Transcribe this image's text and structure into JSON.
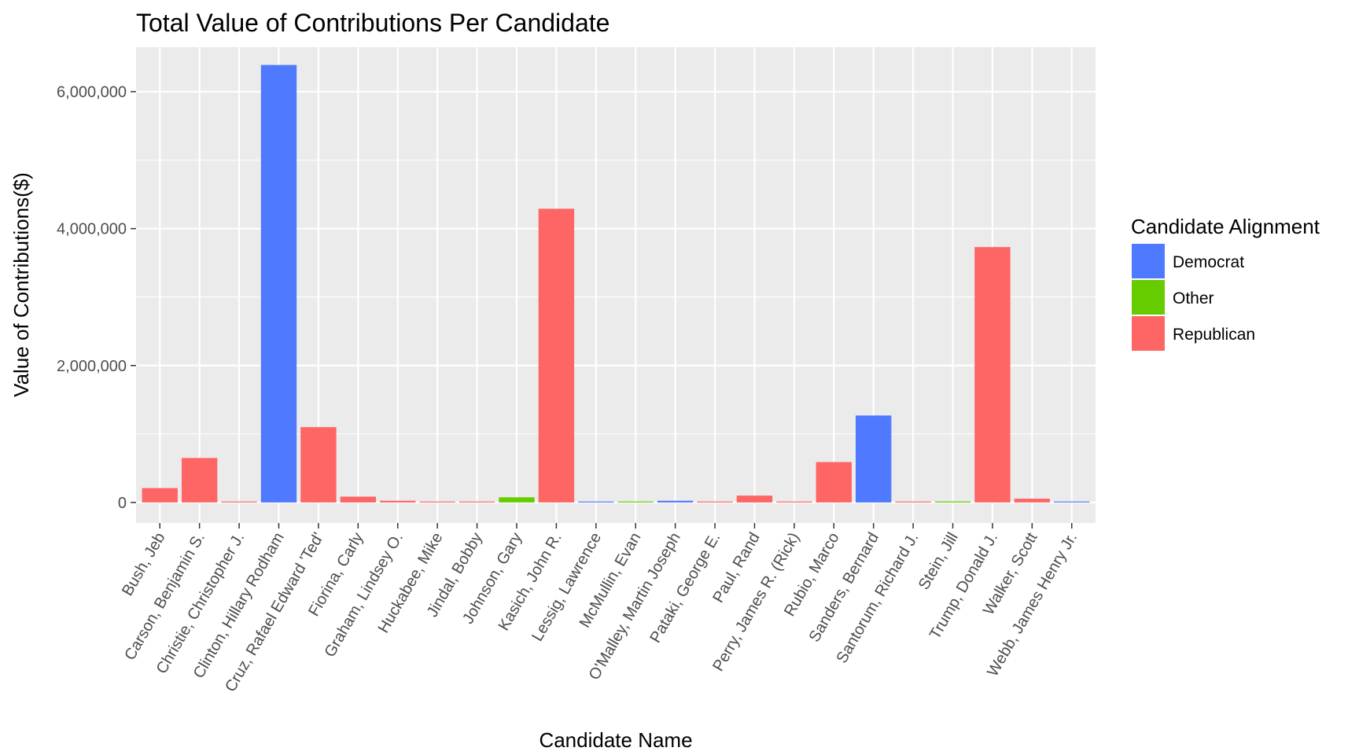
{
  "chart_data": {
    "type": "bar",
    "title": "Total Value of Contributions Per Candidate",
    "xlabel": "Candidate Name",
    "ylabel": "Value of Contributions($)",
    "ylim": [
      -300000,
      6650000
    ],
    "yticks": [
      0,
      2000000,
      4000000,
      6000000
    ],
    "ytick_labels": [
      "0",
      "2,000,000",
      "4,000,000",
      "6,000,000"
    ],
    "grid": true,
    "legend": {
      "title": "Candidate Alignment",
      "placement": "right",
      "entries": [
        {
          "label": "Democrat",
          "color": "#4f79fe"
        },
        {
          "label": "Other",
          "color": "#66cc00"
        },
        {
          "label": "Republican",
          "color": "#fe6565"
        }
      ]
    },
    "categories": [
      "Bush, Jeb",
      "Carson, Benjamin S.",
      "Christie, Christopher J.",
      "Clinton, Hillary Rodham",
      "Cruz, Rafael Edward 'Ted'",
      "Fiorina, Carly",
      "Graham, Lindsey O.",
      "Huckabee, Mike",
      "Jindal, Bobby",
      "Johnson, Gary",
      "Kasich, John R.",
      "Lessig, Lawrence",
      "McMullin, Evan",
      "O'Malley, Martin Joseph",
      "Pataki, George E.",
      "Paul, Rand",
      "Perry, James R. (Rick)",
      "Rubio, Marco",
      "Sanders, Bernard",
      "Santorum, Richard J.",
      "Stein, Jill",
      "Trump, Donald J.",
      "Walker, Scott",
      "Webb, James Henry Jr."
    ],
    "values": [
      210000,
      650000,
      8000,
      6390000,
      1100000,
      85000,
      25000,
      8000,
      8000,
      75000,
      4290000,
      10000,
      12000,
      25000,
      3000,
      100000,
      12000,
      590000,
      1270000,
      10000,
      15000,
      3730000,
      55000,
      12000
    ],
    "alignment": [
      "Republican",
      "Republican",
      "Republican",
      "Democrat",
      "Republican",
      "Republican",
      "Republican",
      "Republican",
      "Republican",
      "Other",
      "Republican",
      "Democrat",
      "Other",
      "Democrat",
      "Republican",
      "Republican",
      "Republican",
      "Republican",
      "Democrat",
      "Republican",
      "Other",
      "Republican",
      "Republican",
      "Democrat"
    ]
  }
}
